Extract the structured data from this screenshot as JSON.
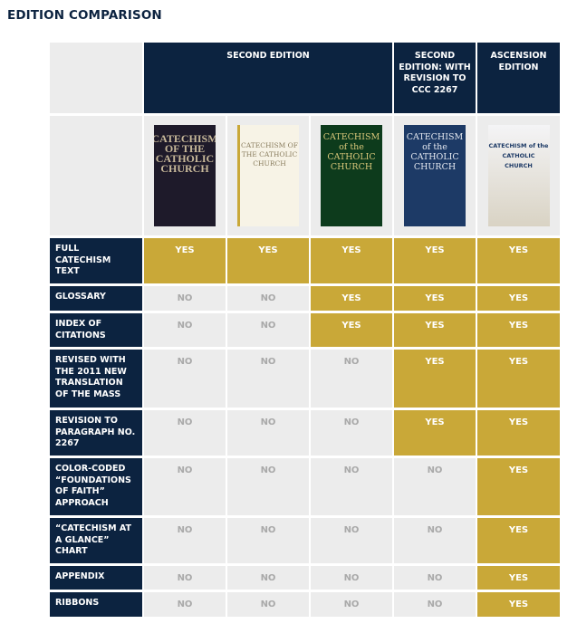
{
  "title": "EDITION COMPARISON",
  "colors": {
    "navy": "#0c2340",
    "gold": "#c9a838",
    "gray": "#ececec",
    "no_text": "#a9a9a9"
  },
  "headers": [
    {
      "label": "SECOND EDITION"
    },
    {
      "label": "SECOND EDITION: WITH REVISION TO CCC 2267"
    },
    {
      "label": "ASCENSION EDITION"
    }
  ],
  "covers": [
    {
      "title": "CATECHISM OF THE CATHOLIC CHURCH",
      "color": "#1e1a2a"
    },
    {
      "title": "CATECHISM OF THE CATHOLIC CHURCH",
      "color": "#f7f3e6"
    },
    {
      "title": "CATECHISM of the CATHOLIC CHURCH",
      "color": "#0d3b1c"
    },
    {
      "title": "CATECHISM of the CATHOLIC CHURCH",
      "color": "#1d3a66"
    },
    {
      "title": "CATECHISM of the CATHOLIC CHURCH",
      "color": "#f4f4f6"
    }
  ],
  "rows": [
    {
      "label": "FULL CATECHISM TEXT",
      "values": [
        "YES",
        "YES",
        "YES",
        "YES",
        "YES"
      ]
    },
    {
      "label": "GLOSSARY",
      "values": [
        "NO",
        "NO",
        "YES",
        "YES",
        "YES"
      ]
    },
    {
      "label": "INDEX OF CITATIONS",
      "values": [
        "NO",
        "NO",
        "YES",
        "YES",
        "YES"
      ]
    },
    {
      "label": "REVISED WITH THE 2011 NEW TRANSLATION OF THE MASS",
      "values": [
        "NO",
        "NO",
        "NO",
        "YES",
        "YES"
      ]
    },
    {
      "label": "REVISION TO PARAGRAPH NO. 2267",
      "values": [
        "NO",
        "NO",
        "NO",
        "YES",
        "YES"
      ]
    },
    {
      "label": "COLOR-CODED “FOUNDATIONS OF FAITH” APPROACH",
      "values": [
        "NO",
        "NO",
        "NO",
        "NO",
        "YES"
      ]
    },
    {
      "label": "“CATECHISM AT A GLANCE” CHART",
      "values": [
        "NO",
        "NO",
        "NO",
        "NO",
        "YES"
      ]
    },
    {
      "label": "APPENDIX",
      "values": [
        "NO",
        "NO",
        "NO",
        "NO",
        "YES"
      ]
    },
    {
      "label": "RIBBONS",
      "values": [
        "NO",
        "NO",
        "NO",
        "NO",
        "YES"
      ]
    }
  ]
}
